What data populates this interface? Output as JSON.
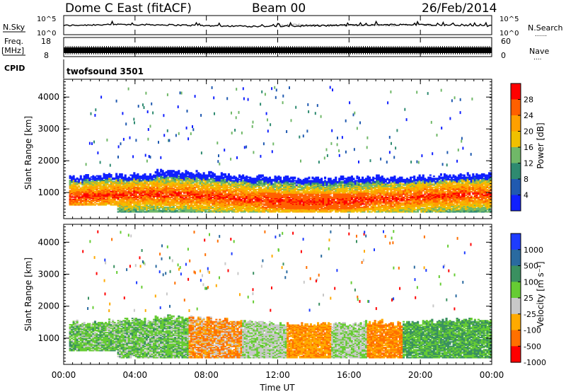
{
  "header": {
    "station": "Dome C East (fitACF)",
    "beam": "Beam 00",
    "date": "26/Feb/2014"
  },
  "noise_panel": {
    "left_label": "N.Sky",
    "right_label": "N.Search",
    "right_label_sub": "......",
    "left_ticks": [
      "10^5",
      "10^0"
    ],
    "right_ticks": [
      "10^5",
      "10^0"
    ]
  },
  "freq_panel": {
    "left_label_1": "Freq.",
    "left_label_2": "[MHz]",
    "right_label": "Nave",
    "right_label_sub": "....",
    "left_ticks": [
      "18",
      "8"
    ],
    "right_ticks": [
      "60",
      "0"
    ]
  },
  "cpid": {
    "label": "CPID",
    "value": "twofsound 3501"
  },
  "power_panel": {
    "ylabel": "Slant Range [km]",
    "colorbar_label": "Power [dB]",
    "colorbar_ticks": [
      "28",
      "24",
      "20",
      "16",
      "12",
      "8",
      "4"
    ],
    "colorbar_colors": [
      "#ff0000",
      "#ff4000",
      "#ff8000",
      "#f0b000",
      "#e0e000",
      "#70c070",
      "#3a8a60",
      "#1e4aa0",
      "#0000ff"
    ],
    "colorbar_heavy": [
      "#ff0000",
      "#ff6000",
      "#ffa000",
      "#f0c000",
      "#70b868",
      "#2e8a70",
      "#205ab0",
      "#1020ff"
    ]
  },
  "velocity_panel": {
    "ylabel": "Slant Range [km]",
    "colorbar_label": "Velocity [m s⁻¹]",
    "colorbar_ticks": [
      "1000",
      "500",
      "100",
      "25",
      "-25",
      "-100",
      "-500",
      "-1000"
    ],
    "colorbar_colors": [
      "#1e3cff",
      "#2a6aa0",
      "#3a9060",
      "#66cc33",
      "#c8c8c8",
      "#ffaa00",
      "#ff7000",
      "#ff0000"
    ]
  },
  "x_axis": {
    "label": "Time UT",
    "ticks": [
      "00:00",
      "04:00",
      "08:00",
      "12:00",
      "16:00",
      "20:00",
      "00:00"
    ]
  },
  "chart_data": [
    {
      "type": "heatmap",
      "title": "Power [dB]",
      "xlabel": "Time UT",
      "ylabel": "Slant Range [km]",
      "x_ticks": [
        "00:00",
        "04:00",
        "08:00",
        "12:00",
        "16:00",
        "20:00",
        "00:00"
      ],
      "xlim_hours": [
        0,
        24
      ],
      "ylim": [
        180,
        4560
      ],
      "y_ticks": [
        1000,
        2000,
        3000,
        4000
      ],
      "colorbar_ticks": [
        4,
        8,
        12,
        16,
        20,
        24,
        28
      ],
      "colorbar_range": [
        0,
        30
      ]
    },
    {
      "type": "heatmap",
      "title": "Velocity [m s⁻¹]",
      "xlabel": "Time UT",
      "ylabel": "Slant Range [km]",
      "x_ticks": [
        "00:00",
        "04:00",
        "08:00",
        "12:00",
        "16:00",
        "20:00",
        "00:00"
      ],
      "xlim_hours": [
        0,
        24
      ],
      "ylim": [
        180,
        4560
      ],
      "y_ticks": [
        1000,
        2000,
        3000,
        4000
      ],
      "colorbar_ticks": [
        1000,
        500,
        100,
        25,
        -25,
        -100,
        -500,
        -1000
      ]
    }
  ]
}
